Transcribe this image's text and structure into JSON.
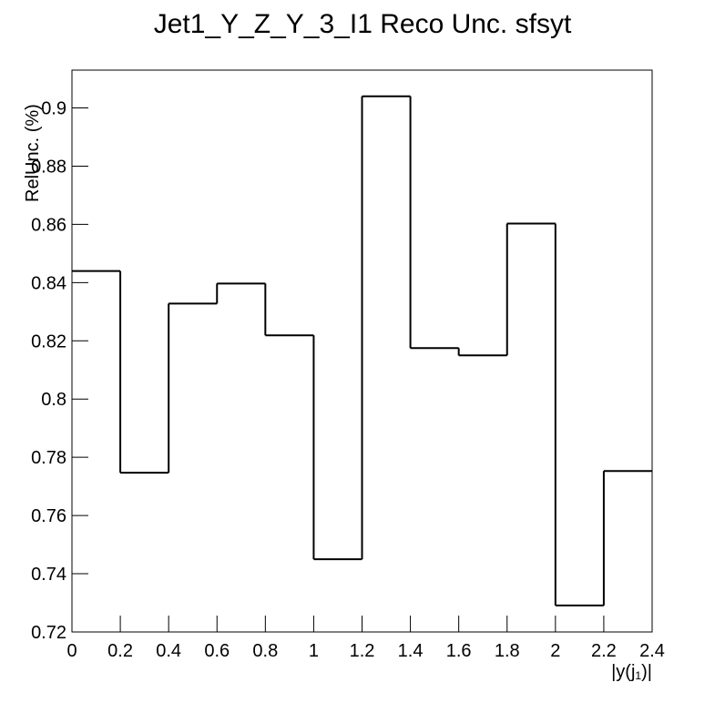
{
  "chart_data": {
    "type": "histogram",
    "title": "Jet1_Y_Z_Y_3_I1 Reco Unc. sfsyt",
    "xlabel": "|y(j₁)|",
    "ylabel": "RelUnc. (%)",
    "bins": [
      0,
      0.2,
      0.4,
      0.6,
      0.8,
      1,
      1.2,
      1.4,
      1.6,
      1.8,
      2,
      2.2,
      2.4
    ],
    "values": [
      0.844,
      0.7747,
      0.8328,
      0.8397,
      0.8219,
      0.745,
      0.904,
      0.8175,
      0.815,
      0.8603,
      0.7291,
      0.7753
    ],
    "color": "#000000",
    "xlim": [
      0,
      2.4
    ],
    "xticks": [
      0,
      0.2,
      0.4,
      0.6,
      0.8,
      1,
      1.2,
      1.4,
      1.6,
      1.8,
      2,
      2.2,
      2.4
    ],
    "ylim": [
      0.72,
      0.913
    ],
    "yticks": [
      0.72,
      0.74,
      0.76,
      0.78,
      0.8,
      0.82,
      0.84,
      0.86,
      0.88,
      0.9
    ]
  }
}
